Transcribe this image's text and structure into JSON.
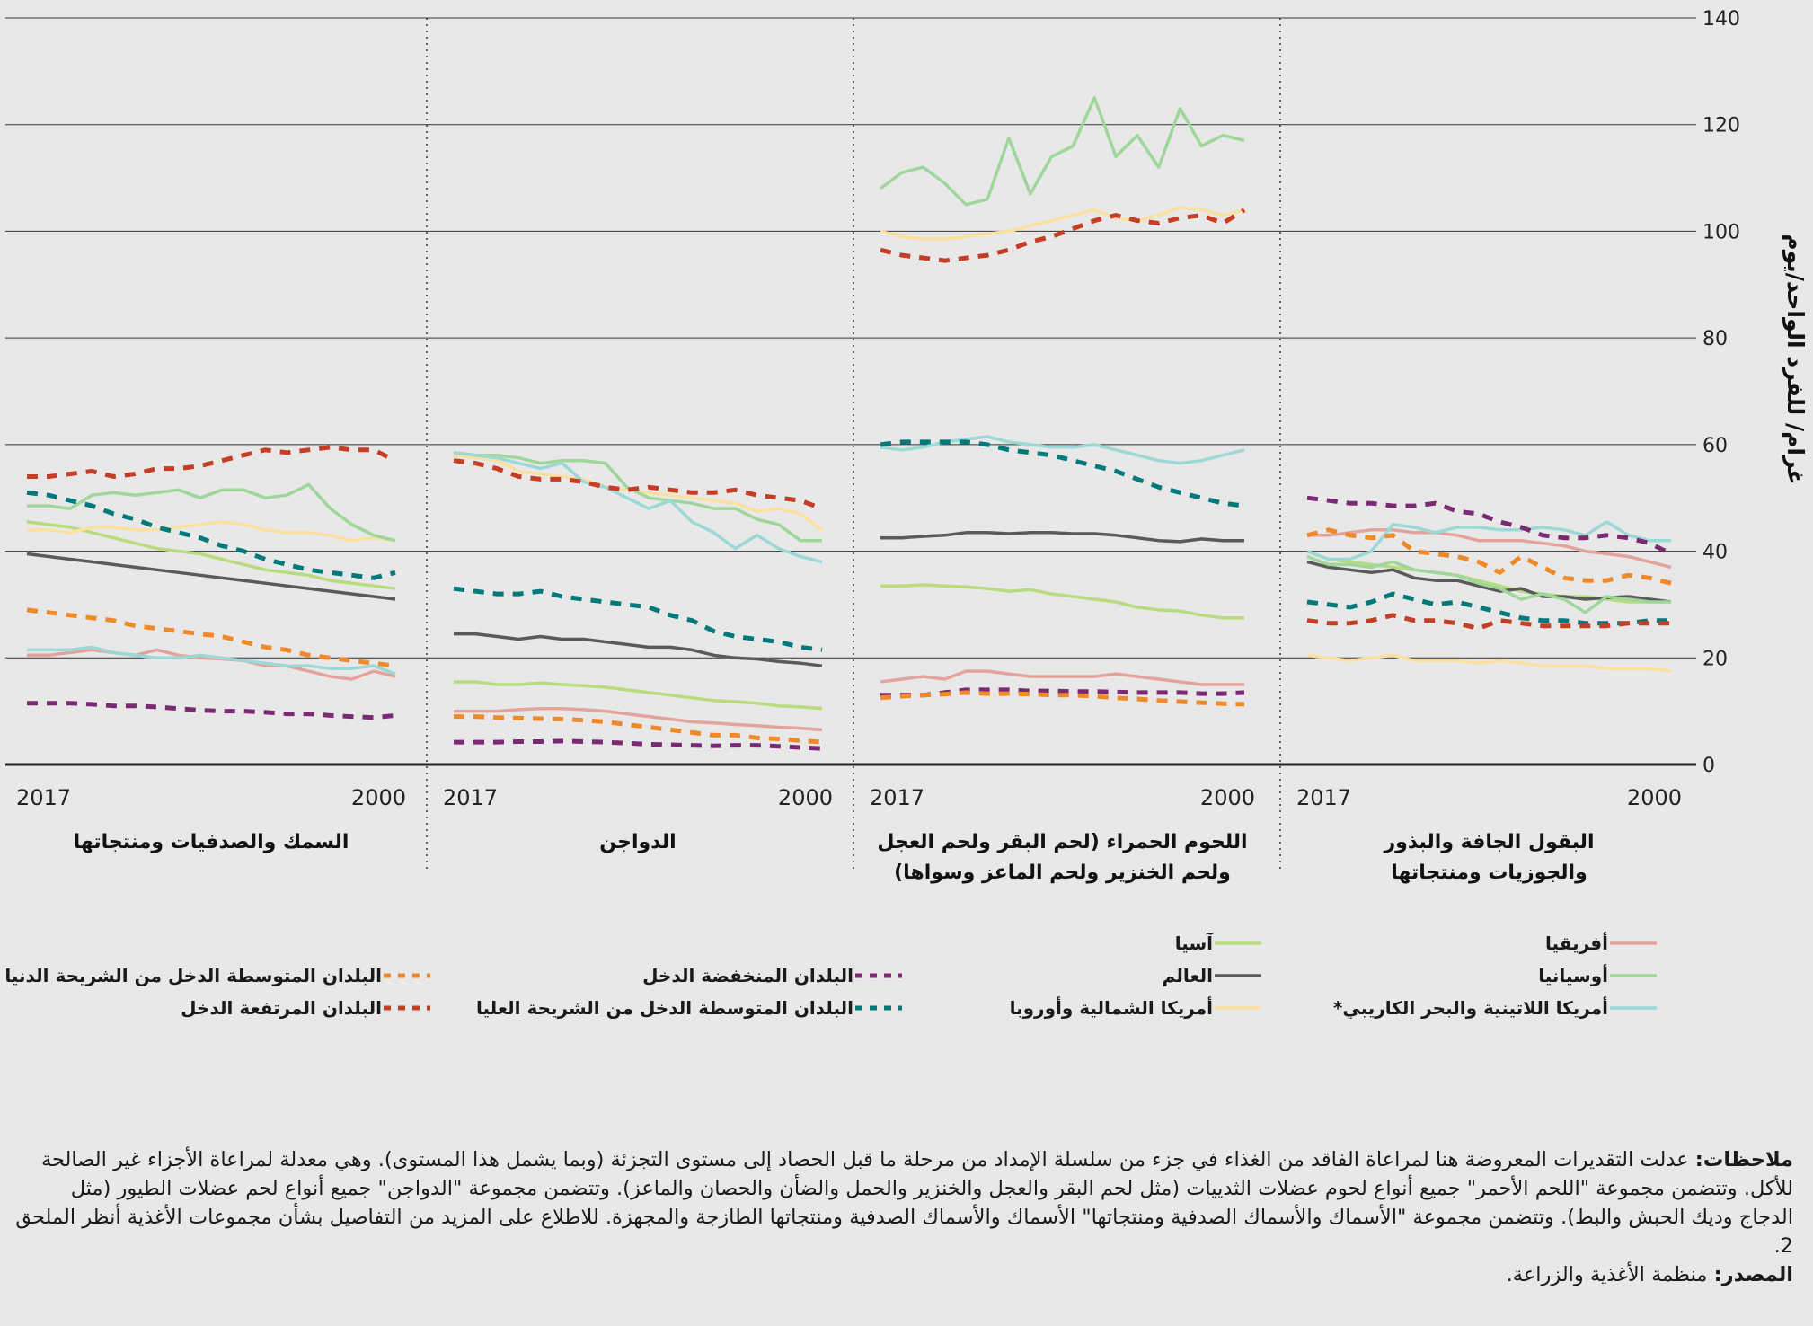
{
  "chart_data": {
    "type": "line",
    "ylabel": "غرام/ للفرد الواحد/يوم",
    "ylim": [
      0,
      140
    ],
    "yticks": [
      0,
      20,
      40,
      60,
      80,
      100,
      120,
      140
    ],
    "x_start_label": "2017",
    "x_end_label": "2000",
    "x_years": [
      2017,
      2016,
      2015,
      2014,
      2013,
      2012,
      2011,
      2010,
      2009,
      2008,
      2007,
      2006,
      2005,
      2004,
      2003,
      2002,
      2001,
      2000
    ],
    "series_styles": [
      {
        "key": "africa",
        "name": "أفريقيا",
        "color": "#e3a39a",
        "dashed": false
      },
      {
        "key": "oceania",
        "name": "أوسيانيا",
        "color": "#9fd79b",
        "dashed": false
      },
      {
        "key": "latam",
        "name": "أمريكا اللاتينية والبحر الكاريبي*",
        "color": "#9bd8d6",
        "dashed": false
      },
      {
        "key": "asia",
        "name": "آسيا",
        "color": "#b7dc7c",
        "dashed": false
      },
      {
        "key": "world",
        "name": "العالم",
        "color": "#5a5a5a",
        "dashed": false
      },
      {
        "key": "nam_eu",
        "name": "أمريكا الشمالية وأوروبا",
        "color": "#fbe0a0",
        "dashed": false
      },
      {
        "key": "lic",
        "name": "البلدان المنخفضة الدخل",
        "color": "#7a2a73",
        "dashed": true
      },
      {
        "key": "umic",
        "name": "البلدان المتوسطة الدخل من الشريحة العليا",
        "color": "#00797b",
        "dashed": true
      },
      {
        "key": "lmic",
        "name": "البلدان المتوسطة الدخل من الشريحة الدنيا",
        "color": "#ef8a2a",
        "dashed": true
      },
      {
        "key": "hic",
        "name": "البلدان المرتفعة الدخل",
        "color": "#c53d25",
        "dashed": true
      }
    ],
    "panels": [
      {
        "title": [
          "السمك والصدفيات ومنتجاتها"
        ],
        "series": {
          "africa": [
            20.5,
            20.5,
            21,
            21.5,
            21,
            20.5,
            21.5,
            20.5,
            20,
            19.8,
            19.5,
            18.5,
            18.5,
            17.5,
            16.5,
            16,
            17.5,
            16.5
          ],
          "oceania": [
            48.5,
            48.5,
            48,
            50.5,
            51,
            50.5,
            51,
            51.5,
            50,
            51.5,
            51.5,
            50,
            50.5,
            52.5,
            48,
            45,
            43,
            42
          ],
          "latam": [
            21.5,
            21.5,
            21.5,
            22,
            21,
            20.5,
            20,
            20,
            20.5,
            20,
            19.5,
            19,
            18.5,
            18.5,
            18,
            18,
            18.5,
            17
          ],
          "asia": [
            45.5,
            45,
            44.5,
            43.5,
            42.5,
            41.5,
            40.5,
            40,
            39.5,
            38.5,
            37.5,
            36.5,
            36,
            35.5,
            34.5,
            34,
            33.5,
            33
          ],
          "world": [
            39.5,
            39,
            38.5,
            38,
            37.5,
            37,
            36.5,
            36,
            35.5,
            35,
            34.5,
            34,
            33.5,
            33,
            32.5,
            32,
            31.5,
            31
          ],
          "nam_eu": [
            44,
            44,
            43.5,
            44.5,
            44.5,
            44,
            44,
            44.5,
            45,
            45.5,
            45,
            44,
            43.5,
            43.5,
            43,
            42,
            42.5,
            42
          ],
          "lic": [
            11.5,
            11.5,
            11.5,
            11.3,
            11,
            11,
            10.8,
            10.5,
            10.2,
            10,
            10,
            9.8,
            9.5,
            9.5,
            9.2,
            9,
            8.8,
            9.2
          ],
          "umic": [
            51,
            50.5,
            49.5,
            48.5,
            47,
            46,
            44.5,
            43.5,
            42.5,
            41,
            40,
            38.5,
            37.5,
            36.5,
            36,
            35.5,
            35,
            36
          ],
          "lmic": [
            29,
            28.5,
            28,
            27.5,
            27,
            26,
            25.5,
            25,
            24.5,
            24,
            23,
            22,
            21.5,
            20.5,
            20,
            19.5,
            19,
            18.5
          ],
          "hic": [
            54,
            54,
            54.5,
            55,
            54,
            54.5,
            55.5,
            55.5,
            56,
            57,
            58,
            59,
            58.5,
            59,
            59.5,
            59,
            59,
            57
          ]
        }
      },
      {
        "title": [
          "الدواجن"
        ],
        "series": {
          "africa": [
            10,
            10,
            10,
            10.3,
            10.5,
            10.5,
            10.3,
            10,
            9.5,
            9,
            8.5,
            8,
            7.8,
            7.5,
            7.3,
            7,
            6.8,
            6.5
          ],
          "oceania": [
            58.5,
            58,
            58,
            57.5,
            56.5,
            57,
            57,
            56.5,
            52,
            50,
            49.5,
            49,
            48,
            48,
            46,
            45,
            42,
            42
          ],
          "latam": [
            58.5,
            58,
            57.5,
            56.5,
            55.5,
            56.5,
            53,
            52,
            50,
            48,
            49.5,
            45.5,
            43.5,
            40.5,
            43,
            40.5,
            39,
            38
          ],
          "asia": [
            15.5,
            15.5,
            15,
            15,
            15.3,
            15,
            14.8,
            14.5,
            14,
            13.5,
            13,
            12.5,
            12,
            11.8,
            11.5,
            11,
            10.8,
            10.5
          ],
          "world": [
            24.5,
            24.5,
            24,
            23.5,
            24,
            23.5,
            23.5,
            23,
            22.5,
            22,
            22,
            21.5,
            20.5,
            20,
            19.8,
            19.3,
            19,
            18.5
          ],
          "nam_eu": [
            58,
            57.5,
            57,
            55,
            54.5,
            54,
            53.5,
            52,
            51.5,
            51,
            50.5,
            50,
            49.5,
            49,
            47.5,
            48,
            47,
            44
          ],
          "lic": [
            4.2,
            4.2,
            4.2,
            4.3,
            4.3,
            4.4,
            4.3,
            4.2,
            4,
            3.8,
            3.7,
            3.6,
            3.5,
            3.6,
            3.6,
            3.4,
            3.2,
            3
          ],
          "umic": [
            33,
            32.5,
            32,
            32,
            32.5,
            31.5,
            31,
            30.5,
            30,
            29.5,
            28,
            27,
            25,
            24,
            23.5,
            23,
            22,
            21.5
          ],
          "lmic": [
            9,
            9,
            8.8,
            8.7,
            8.6,
            8.5,
            8.3,
            8,
            7.5,
            7,
            6.5,
            6,
            5.5,
            5.5,
            5,
            4.8,
            4.5,
            4.2
          ],
          "hic": [
            57,
            56.5,
            55.5,
            54,
            53.5,
            53.5,
            53,
            52,
            51.5,
            52,
            51.5,
            51,
            51,
            51.5,
            50.5,
            50,
            49.5,
            48
          ]
        }
      },
      {
        "title": [
          "اللحوم الحمراء (لحم البقر ولحم العجل",
          "ولحم الخنزير ولحم الماعز وسواها)"
        ],
        "series": {
          "africa": [
            15.5,
            16,
            16.5,
            16,
            17.5,
            17.5,
            17,
            16.5,
            16.5,
            16.5,
            16.5,
            17,
            16.5,
            16,
            15.5,
            15,
            15,
            15
          ],
          "oceania": [
            108,
            111,
            112,
            109,
            105,
            106,
            117.5,
            107,
            114,
            116,
            125,
            114,
            118,
            112,
            123,
            116,
            118,
            117
          ],
          "latam": [
            59.5,
            59,
            59.5,
            60.5,
            61,
            61.5,
            60.5,
            60,
            59.5,
            59.5,
            60,
            59,
            58,
            57,
            56.5,
            57,
            58,
            59
          ],
          "asia": [
            33.5,
            33.5,
            33.7,
            33.5,
            33.3,
            33,
            32.5,
            32.8,
            32,
            31.5,
            31,
            30.5,
            29.5,
            29,
            28.8,
            28,
            27.5,
            27.5
          ],
          "world": [
            42.5,
            42.5,
            42.8,
            43,
            43.5,
            43.5,
            43.3,
            43.5,
            43.5,
            43.3,
            43.3,
            43,
            42.5,
            42,
            41.8,
            42.3,
            42,
            42
          ],
          "nam_eu": [
            100,
            99,
            98.5,
            98.5,
            99,
            99.5,
            100,
            101,
            102,
            103,
            104,
            102.5,
            102,
            103,
            104.5,
            104,
            103,
            104
          ],
          "lic": [
            13,
            13,
            13,
            13.5,
            14,
            14,
            14,
            13.8,
            13.8,
            13.7,
            13.7,
            13.6,
            13.5,
            13.5,
            13.5,
            13.3,
            13.3,
            13.5
          ],
          "umic": [
            60,
            60.5,
            60.5,
            60.5,
            60.5,
            60,
            59,
            58.5,
            58,
            57,
            56,
            55,
            53.5,
            52,
            51,
            50,
            49,
            48.5
          ],
          "lmic": [
            12.5,
            12.8,
            13,
            13.2,
            13.5,
            13.3,
            13.3,
            13.2,
            13,
            13,
            12.8,
            12.5,
            12.3,
            12,
            11.8,
            11.6,
            11.4,
            11.3
          ],
          "hic": [
            96.5,
            95.5,
            95,
            94.5,
            95,
            95.5,
            96.5,
            98,
            99,
            100.5,
            102,
            103,
            102,
            101.5,
            102.5,
            103,
            101.5,
            104
          ]
        }
      },
      {
        "title": [
          "البقول الجافة والبذور",
          "والجوزيات ومنتجاتها"
        ],
        "series": {
          "africa": [
            43,
            43,
            43.5,
            44,
            44,
            43.5,
            43.5,
            43,
            42,
            42,
            42,
            41.5,
            41,
            40,
            39.5,
            39,
            38,
            37
          ],
          "oceania": [
            39,
            37.5,
            37.5,
            37,
            38,
            36.5,
            36,
            35.5,
            34,
            33,
            31,
            32,
            31,
            28.5,
            31.5,
            31,
            30.5,
            30.5
          ],
          "latam": [
            40,
            38.5,
            38.5,
            40,
            45,
            44.5,
            43.5,
            44.5,
            44.5,
            44,
            44,
            44.5,
            44,
            43,
            45.5,
            43,
            42,
            42
          ],
          "asia": [
            40,
            38.5,
            38,
            37.5,
            37,
            36.5,
            36,
            35.5,
            34.5,
            33.5,
            32.5,
            32,
            31.5,
            31.5,
            31,
            30.5,
            30.5,
            30.5
          ],
          "world": [
            38,
            37,
            36.5,
            36,
            36.5,
            35,
            34.5,
            34.5,
            33.5,
            32.5,
            33,
            31.5,
            31.5,
            31,
            31.3,
            31.5,
            31,
            30.5
          ],
          "nam_eu": [
            20.5,
            20,
            19.5,
            20,
            20.5,
            19.5,
            19.5,
            19.5,
            19,
            19.5,
            19,
            18.5,
            18.5,
            18.5,
            18,
            18,
            18,
            17.5
          ],
          "lic": [
            50,
            49.5,
            49,
            49,
            48.5,
            48.5,
            49,
            47.5,
            47,
            45.5,
            44.5,
            43,
            42.5,
            42.5,
            43,
            42.5,
            41.5,
            39.5
          ],
          "umic": [
            30.5,
            30,
            29.5,
            30.5,
            32,
            31,
            30,
            30.5,
            29.5,
            28.5,
            27.5,
            27,
            27,
            26.5,
            26.5,
            26.5,
            27,
            27
          ],
          "lmic": [
            43,
            44,
            43,
            42.5,
            43,
            40,
            39.5,
            39,
            38,
            36,
            39,
            37,
            35,
            34.5,
            34.5,
            35.5,
            35,
            34
          ],
          "hic": [
            27,
            26.5,
            26.5,
            27,
            28,
            27,
            27,
            26.5,
            25.5,
            27,
            26.5,
            26,
            26,
            26,
            26,
            26.5,
            26.5,
            26.5
          ]
        }
      }
    ]
  },
  "notes": {
    "notes_label": "ملاحظات:",
    "notes_text": "عدلت التقديرات المعروضة هنا لمراعاة الفاقد من الغذاء في جزء من سلسلة الإمداد من مرحلة ما قبل الحصاد إلى مستوى التجزئة (وبما يشمل هذا المستوى). وهي معدلة لمراعاة الأجزاء غير الصالحة للأكل. وتتضمن مجموعة \"اللحم الأحمر\" جميع أنواع لحوم عضلات الثدييات (مثل لحم البقر والعجل والخنزير والحمل والضأن والحصان والماعز). وتتضمن مجموعة \"الدواجن\" جميع أنواع لحم عضلات الطيور (مثل الدجاج وديك الحبش والبط). وتتضمن مجموعة \"الأسماك والأسماك الصدفية ومنتجاتها\" الأسماك والأسماك الصدفية ومنتجاتها الطازجة والمجهزة. للاطلاع على المزيد من التفاصيل بشأن مجموعات الأغذية أنظر الملحق 2.",
    "source_label": "المصدر:",
    "source_text": "منظمة الأغذية والزراعة."
  }
}
